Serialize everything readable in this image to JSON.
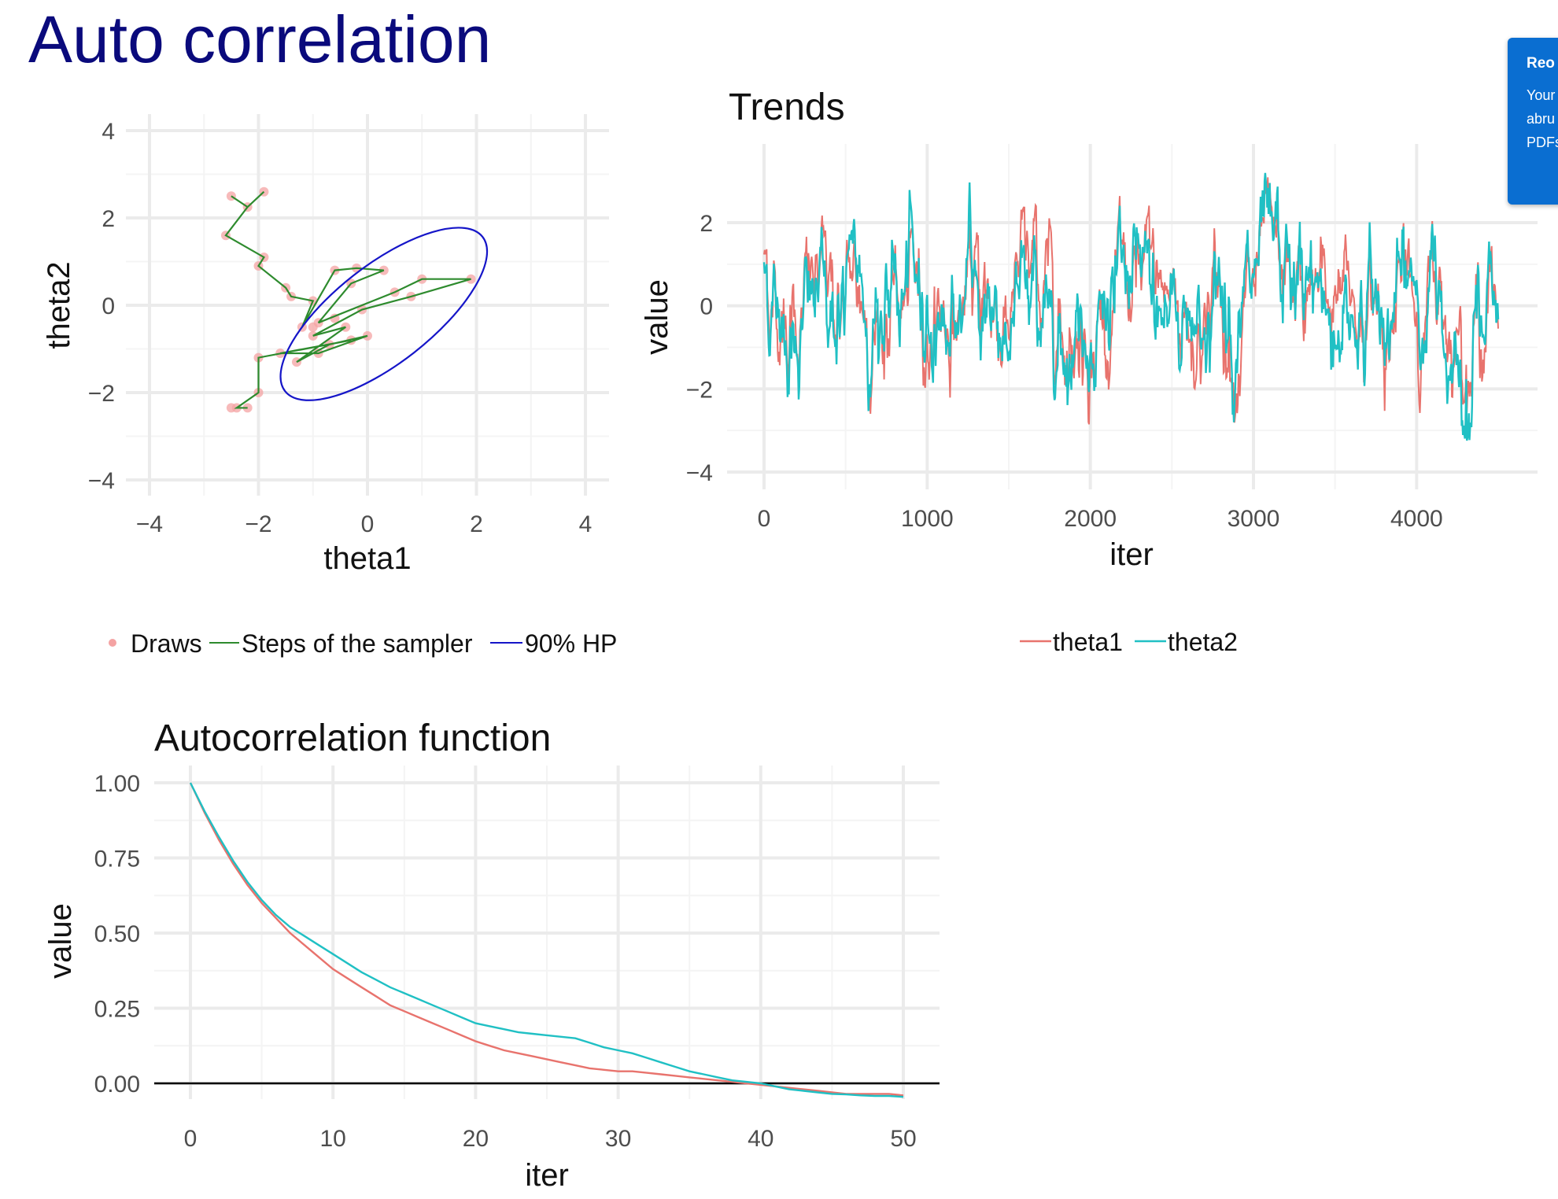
{
  "slide": {
    "title": "Auto correlation"
  },
  "notification": {
    "title": "Reo",
    "lines": [
      "Your",
      "abru",
      "PDFs"
    ],
    "color": "#0a6ed1"
  },
  "colors": {
    "theta1": "#e8736d",
    "theta2": "#20c0c4",
    "draws": "#f4a3a3",
    "steps": "#2e8b2e",
    "hpd": "#1515c8",
    "zero_line": "#000000"
  },
  "chart_data": [
    {
      "id": "scatter",
      "type": "scatter",
      "title": "",
      "xlabel": "theta1",
      "ylabel": "theta2",
      "xlim": [
        -4,
        4
      ],
      "ylim": [
        -4,
        4
      ],
      "xticks": [
        "−4",
        "−2",
        "0",
        "2",
        "4"
      ],
      "yticks": [
        "−4",
        "−2",
        "0",
        "2",
        "4"
      ],
      "xtick_values": [
        -4,
        -2,
        0,
        2,
        4
      ],
      "ytick_values": [
        -4,
        -2,
        0,
        2,
        4
      ],
      "grid": true,
      "legend": [
        "Draws",
        "Steps of the sampler",
        "90% HP"
      ],
      "legend_position": "bottom",
      "points": [
        [
          -2.5,
          2.5
        ],
        [
          -1.9,
          2.6
        ],
        [
          -2.2,
          2.25
        ],
        [
          -2.6,
          1.6
        ],
        [
          -1.9,
          1.1
        ],
        [
          -2.0,
          0.9
        ],
        [
          -1.5,
          0.4
        ],
        [
          -1.4,
          0.2
        ],
        [
          -1.0,
          0.1
        ],
        [
          -0.6,
          0.8
        ],
        [
          -0.2,
          0.85
        ],
        [
          0.3,
          0.8
        ],
        [
          -0.9,
          -0.4
        ],
        [
          -1.0,
          -0.7
        ],
        [
          -1.2,
          -0.5
        ],
        [
          -0.3,
          0.5
        ],
        [
          0.5,
          0.3
        ],
        [
          1.0,
          0.6
        ],
        [
          1.9,
          0.6
        ],
        [
          0.8,
          0.2
        ],
        [
          -0.1,
          -0.1
        ],
        [
          -0.4,
          -0.5
        ],
        [
          -0.7,
          -0.9
        ],
        [
          -1.3,
          -1.3
        ],
        [
          -0.3,
          -0.8
        ],
        [
          0.0,
          -0.7
        ],
        [
          -0.9,
          -1.1
        ],
        [
          -1.6,
          -1.1
        ],
        [
          -2.0,
          -1.2
        ],
        [
          -2.0,
          -2.0
        ],
        [
          -2.4,
          -2.35
        ],
        [
          -2.5,
          -2.35
        ],
        [
          -2.2,
          -2.35
        ],
        [
          -1.0,
          -0.5
        ],
        [
          -0.6,
          -0.3
        ]
      ],
      "steps": [
        [
          -2.5,
          2.5
        ],
        [
          -2.2,
          2.25
        ],
        [
          -1.9,
          2.6
        ],
        [
          -2.2,
          2.25
        ],
        [
          -2.6,
          1.6
        ],
        [
          -1.9,
          1.1
        ],
        [
          -2.0,
          0.9
        ],
        [
          -1.5,
          0.4
        ],
        [
          -1.4,
          0.2
        ],
        [
          -1.0,
          0.1
        ],
        [
          -1.2,
          -0.5
        ],
        [
          -0.6,
          0.8
        ],
        [
          -0.2,
          0.85
        ],
        [
          0.3,
          0.8
        ],
        [
          -0.3,
          0.5
        ],
        [
          -0.9,
          -0.4
        ],
        [
          0.5,
          0.3
        ],
        [
          1.0,
          0.6
        ],
        [
          1.9,
          0.6
        ],
        [
          0.8,
          0.2
        ],
        [
          -0.1,
          -0.1
        ],
        [
          -1.0,
          -0.7
        ],
        [
          -0.4,
          -0.5
        ],
        [
          -1.3,
          -1.3
        ],
        [
          -0.7,
          -0.9
        ],
        [
          0.0,
          -0.7
        ],
        [
          -0.9,
          -1.1
        ],
        [
          -1.6,
          -1.1
        ],
        [
          -0.3,
          -0.8
        ],
        [
          -2.0,
          -1.2
        ],
        [
          -2.0,
          -2.0
        ],
        [
          -2.4,
          -2.35
        ],
        [
          -2.2,
          -2.35
        ]
      ],
      "hpd_ellipse": {
        "center": [
          0.3,
          -0.2
        ],
        "rx": 2.3,
        "ry": 0.9,
        "angle_deg": 38
      }
    },
    {
      "id": "trends",
      "type": "line",
      "title": "Trends",
      "xlabel": "iter",
      "ylabel": "value",
      "xlim": [
        -70,
        4650
      ],
      "ylim": [
        -4.3,
        3.9
      ],
      "xticks": [
        "0",
        "1000",
        "2000",
        "3000",
        "4000"
      ],
      "xtick_values": [
        0,
        1000,
        2000,
        3000,
        4000
      ],
      "yticks": [
        "−4",
        "−2",
        "0",
        "2"
      ],
      "ytick_values": [
        -4,
        -2,
        0,
        2
      ],
      "n_iter": 4500,
      "grid": true,
      "series": [
        {
          "name": "theta1",
          "color": "#e8736d"
        },
        {
          "name": "theta2",
          "color": "#20c0c4"
        }
      ],
      "legend_position": "bottom"
    },
    {
      "id": "acf",
      "type": "line",
      "title": "Autocorrelation function",
      "xlabel": "iter",
      "ylabel": "value",
      "xlim": [
        -2.5,
        52.5
      ],
      "ylim": [
        -0.1,
        1.05
      ],
      "xticks": [
        "0",
        "10",
        "20",
        "30",
        "40",
        "50"
      ],
      "xtick_values": [
        0,
        10,
        20,
        30,
        40,
        50
      ],
      "yticks": [
        "0.00",
        "0.25",
        "0.50",
        "0.75",
        "1.00"
      ],
      "ytick_values": [
        0,
        0.25,
        0.5,
        0.75,
        1.0
      ],
      "grid": true,
      "hline": 0,
      "x": [
        0,
        1,
        2,
        3,
        4,
        5,
        6,
        7,
        8,
        9,
        10,
        11,
        12,
        13,
        14,
        15,
        16,
        17,
        18,
        19,
        20,
        21,
        22,
        23,
        24,
        25,
        26,
        27,
        28,
        29,
        30,
        31,
        32,
        33,
        34,
        35,
        36,
        37,
        38,
        39,
        40,
        41,
        42,
        43,
        44,
        45,
        46,
        47,
        48,
        49,
        50
      ],
      "series": [
        {
          "name": "theta1",
          "color": "#e8736d",
          "values": [
            1.0,
            0.9,
            0.81,
            0.73,
            0.66,
            0.6,
            0.55,
            0.5,
            0.46,
            0.42,
            0.38,
            0.35,
            0.32,
            0.29,
            0.26,
            0.24,
            0.22,
            0.2,
            0.18,
            0.16,
            0.14,
            0.125,
            0.11,
            0.1,
            0.09,
            0.08,
            0.07,
            0.06,
            0.05,
            0.045,
            0.04,
            0.04,
            0.035,
            0.03,
            0.025,
            0.02,
            0.015,
            0.01,
            0.005,
            0.0,
            -0.005,
            -0.01,
            -0.015,
            -0.02,
            -0.025,
            -0.03,
            -0.035,
            -0.035,
            -0.035,
            -0.035,
            -0.04
          ]
        },
        {
          "name": "theta2",
          "color": "#20c0c4",
          "values": [
            1.0,
            0.905,
            0.82,
            0.74,
            0.67,
            0.61,
            0.56,
            0.52,
            0.49,
            0.46,
            0.43,
            0.4,
            0.37,
            0.345,
            0.32,
            0.3,
            0.28,
            0.26,
            0.24,
            0.22,
            0.2,
            0.19,
            0.18,
            0.17,
            0.165,
            0.16,
            0.155,
            0.15,
            0.135,
            0.12,
            0.11,
            0.1,
            0.085,
            0.07,
            0.055,
            0.04,
            0.03,
            0.02,
            0.01,
            0.005,
            0.0,
            -0.01,
            -0.02,
            -0.025,
            -0.03,
            -0.035,
            -0.037,
            -0.04,
            -0.042,
            -0.042,
            -0.045
          ]
        }
      ],
      "legend": [
        "theta1",
        "theta2"
      ]
    }
  ]
}
